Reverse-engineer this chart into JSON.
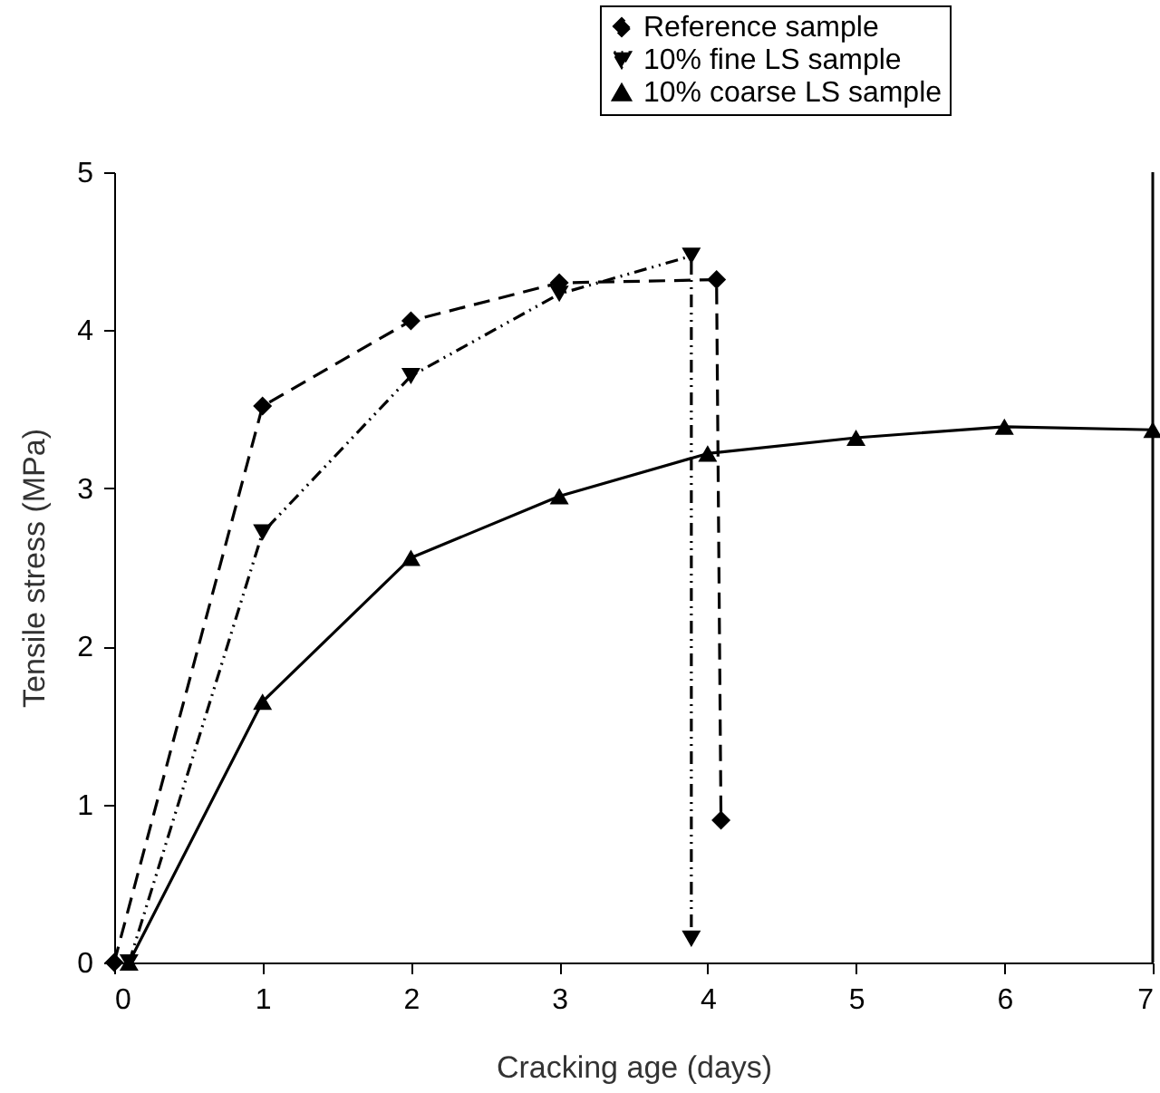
{
  "chart_data": {
    "type": "line",
    "xlabel": "Cracking age (days)",
    "ylabel": "Tensile stress (MPa)",
    "xlim": [
      0,
      7
    ],
    "ylim": [
      0,
      5
    ],
    "xticks": [
      0,
      1,
      2,
      3,
      4,
      5,
      6,
      7
    ],
    "yticks": [
      0,
      1,
      2,
      3,
      4,
      5
    ],
    "grid": false,
    "legend": "top right",
    "series": [
      {
        "name": "Reference sample",
        "color": "#000000",
        "marker": "diamond",
        "line_style": "dashed",
        "x": [
          0,
          1,
          2,
          3,
          4.06,
          4.09
        ],
        "values": [
          0,
          3.52,
          4.06,
          4.3,
          4.32,
          0.9
        ]
      },
      {
        "name": "10% fine LS sample",
        "color": "#000000",
        "marker": "triangle-down",
        "line_style": "dashdotdot",
        "x": [
          0.1,
          1,
          2,
          3,
          3.89,
          3.89
        ],
        "values": [
          0,
          2.72,
          3.71,
          4.23,
          4.47,
          0.15
        ]
      },
      {
        "name": "10% coarse LS sample",
        "color": "#000000",
        "marker": "triangle",
        "line_style": "solid",
        "x": [
          0.1,
          1,
          2,
          3,
          4,
          5,
          6,
          7
        ],
        "values": [
          0,
          1.65,
          2.56,
          2.95,
          3.22,
          3.32,
          3.39,
          3.37
        ]
      }
    ]
  }
}
